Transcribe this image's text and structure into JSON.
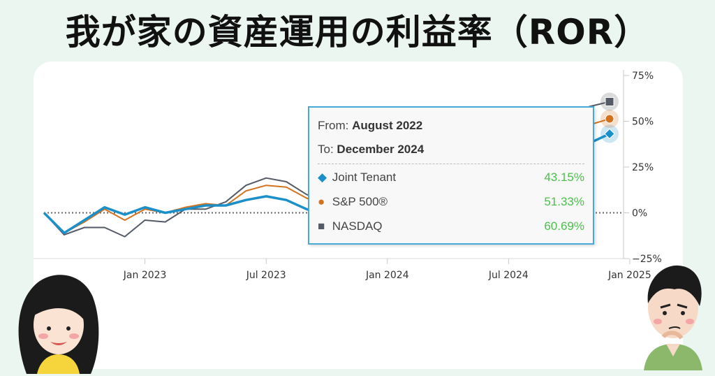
{
  "title": "我が家の資産運用の利益率（ROR）",
  "colors": {
    "joint": "#1a8fc9",
    "sp500": "#d2731f",
    "nasdaq": "#555b66",
    "value_green": "#4cbf4c"
  },
  "chart_data": {
    "type": "line",
    "x": [
      "2022-08",
      "2022-09",
      "2022-10",
      "2022-11",
      "2022-12",
      "2023-01",
      "2023-02",
      "2023-03",
      "2023-04",
      "2023-05",
      "2023-06",
      "2023-07",
      "2023-08",
      "2023-09",
      "2023-10",
      "2023-11",
      "2023-12",
      "2024-01",
      "2024-02",
      "2024-03",
      "2024-04",
      "2024-05",
      "2024-06",
      "2024-07",
      "2024-08",
      "2024-09",
      "2024-10",
      "2024-11",
      "2024-12"
    ],
    "xticks": [
      "Jan 2023",
      "Jul 2023",
      "Jan 2024",
      "Jul 2024",
      "Jan 2025"
    ],
    "xtick_dates": [
      "2023-01",
      "2023-07",
      "2024-01",
      "2024-07",
      "2025-01"
    ],
    "yticks": [
      "75%",
      "50%",
      "25%",
      "0%",
      "−25%"
    ],
    "ytick_values": [
      75,
      50,
      25,
      0,
      -25
    ],
    "ylim": [
      -25,
      75
    ],
    "series": [
      {
        "name": "Joint Tenant",
        "values": [
          0,
          -11,
          -4,
          3,
          -1,
          3,
          0,
          2,
          4,
          4,
          7,
          9,
          7,
          2,
          -1,
          6,
          11,
          14,
          16,
          19,
          17,
          22,
          25,
          27,
          29,
          31,
          34,
          38,
          43.15
        ]
      },
      {
        "name": "S&P 500®",
        "values": [
          0,
          -11,
          -5,
          2,
          -4,
          2,
          0,
          3,
          5,
          4,
          12,
          15,
          14,
          8,
          4,
          12,
          18,
          21,
          24,
          28,
          25,
          30,
          34,
          36,
          38,
          41,
          43,
          48,
          51.33
        ]
      },
      {
        "name": "NASDAQ",
        "values": [
          0,
          -12,
          -8,
          -8,
          -13,
          -4,
          -5,
          2,
          2,
          6,
          15,
          19,
          17,
          10,
          6,
          15,
          22,
          26,
          30,
          34,
          30,
          36,
          42,
          45,
          47,
          50,
          53,
          58,
          60.69
        ]
      }
    ],
    "tooltip": {
      "from_label": "From:",
      "from_value": "August 2022",
      "to_label": "To:",
      "to_value": "December 2024",
      "rows": [
        {
          "marker": "◆",
          "name": "Joint Tenant",
          "value": "43.15%"
        },
        {
          "marker": "●",
          "name": "S&P 500®",
          "value": "51.33%"
        },
        {
          "marker": "■",
          "name": "NASDAQ",
          "value": "60.69%"
        }
      ]
    }
  }
}
